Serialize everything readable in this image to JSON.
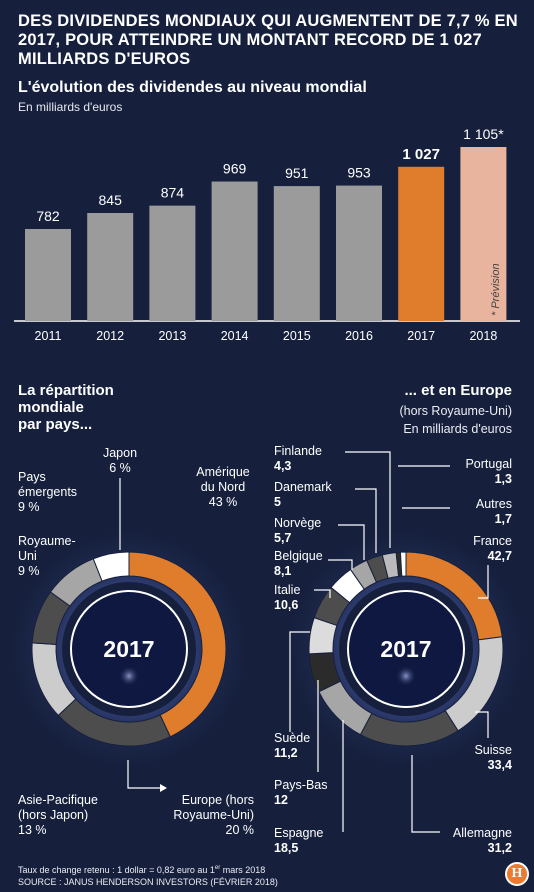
{
  "headline": "DES DIVIDENDES MONDIAUX QUI AUGMENTENT DE 7,7 % EN 2017, POUR ATTEINDRE UN MONTANT RECORD DE 1 027 MILLIARDS D'EUROS",
  "colors": {
    "background": "#16203d",
    "grey": "#9b9b9b",
    "orange": "#e07d2d",
    "forecast": "#e9b49e",
    "dark_grey": "#4d4d4d",
    "light_grey": "#cccccc",
    "white": "#ffffff"
  },
  "chart_data": [
    {
      "type": "bar",
      "title": "L'évolution des dividendes au niveau mondial",
      "subtitle": "En milliards d'euros",
      "categories": [
        "2011",
        "2012",
        "2013",
        "2014",
        "2015",
        "2016",
        "2017",
        "2018"
      ],
      "values": [
        782,
        845,
        874,
        969,
        951,
        953,
        1027,
        1105
      ],
      "value_labels": [
        "782",
        "845",
        "874",
        "969",
        "951",
        "953",
        "1 027",
        "1 105*"
      ],
      "bar_colors": [
        "#9b9b9b",
        "#9b9b9b",
        "#9b9b9b",
        "#9b9b9b",
        "#9b9b9b",
        "#9b9b9b",
        "#e07d2d",
        "#e9b49e"
      ],
      "annotation": "* Prévision",
      "ylim": [
        400,
        1120
      ],
      "xlabel": "",
      "ylabel": ""
    },
    {
      "type": "pie",
      "title": "La répartition mondiale par pays...",
      "center_label": "2017",
      "slices": [
        {
          "name": "Amérique du Nord",
          "value": 43,
          "label": "43 %",
          "color": "#e07d2d"
        },
        {
          "name": "Europe (hors Royaume-Uni)",
          "value": 20,
          "label": "20 %",
          "color": "#4d4d4d"
        },
        {
          "name": "Asie-Pacifique (hors Japon)",
          "value": 13,
          "label": "13 %",
          "color": "#cccccc"
        },
        {
          "name": "Royaume-Uni",
          "value": 9,
          "label": "9 %",
          "color": "#4d4d4d"
        },
        {
          "name": "Pays émergents",
          "value": 9,
          "label": "9 %",
          "color": "#a6a6a6"
        },
        {
          "name": "Japon",
          "value": 6,
          "label": "6 %",
          "color": "#ffffff"
        }
      ]
    },
    {
      "type": "pie",
      "title": "... et en Europe",
      "subtitle": "(hors Royaume-Uni)",
      "unit": "En milliards d'euros",
      "center_label": "2017",
      "slices": [
        {
          "name": "France",
          "value": 42.7,
          "label": "42,7",
          "color": "#e07d2d"
        },
        {
          "name": "Suisse",
          "value": 33.4,
          "label": "33,4",
          "color": "#cccccc"
        },
        {
          "name": "Allemagne",
          "value": 31.2,
          "label": "31,2",
          "color": "#4d4d4d"
        },
        {
          "name": "Espagne",
          "value": 18.5,
          "label": "18,5",
          "color": "#a6a6a6"
        },
        {
          "name": "Pays-Bas",
          "value": 12,
          "label": "12",
          "color": "#2b2b2b"
        },
        {
          "name": "Suède",
          "value": 11.2,
          "label": "11,2",
          "color": "#dcdcdc"
        },
        {
          "name": "Italie",
          "value": 10.6,
          "label": "10,6",
          "color": "#4d4d4d"
        },
        {
          "name": "Belgique",
          "value": 8.1,
          "label": "8,1",
          "color": "#ffffff"
        },
        {
          "name": "Norvège",
          "value": 5.7,
          "label": "5,7",
          "color": "#a6a6a6"
        },
        {
          "name": "Danemark",
          "value": 5,
          "label": "5",
          "color": "#4d4d4d"
        },
        {
          "name": "Finlande",
          "value": 4.3,
          "label": "4,3",
          "color": "#bbbbbb"
        },
        {
          "name": "Portugal",
          "value": 1.3,
          "label": "1,3",
          "color": "#2b2b2b"
        },
        {
          "name": "Autres",
          "value": 1.7,
          "label": "1,7",
          "color": "#ffffff"
        }
      ]
    }
  ],
  "pie_world": {
    "title_lines": [
      "La répartition",
      "mondiale",
      "par pays..."
    ],
    "labels": {
      "japon": {
        "name": "Japon",
        "value": "6 %"
      },
      "emergents": {
        "name1": "Pays",
        "name2": "émergents",
        "value": "9 %"
      },
      "ru": {
        "name1": "Royaume-",
        "name2": "Uni",
        "value": "9 %"
      },
      "amerique": {
        "name1": "Amérique",
        "name2": "du Nord",
        "value": "43 %"
      },
      "asie": {
        "name1": "Asie-Pacifique",
        "name2": "(hors Japon)",
        "value": "13 %"
      },
      "europe": {
        "name1": "Europe (hors",
        "name2": "Royaume-Uni)",
        "value": "20 %"
      }
    }
  },
  "pie_europe": {
    "title": "... et en Europe",
    "subtitle": "(hors Royaume-Uni)",
    "unit": "En milliards d'euros"
  },
  "footer": {
    "exchange_prefix": "Taux de change retenu : 1 dollar = 0,82 euro au 1",
    "exchange_sup": "er",
    "exchange_suffix": " mars 2018",
    "source": "SOURCE : JANUS HENDERSON INVESTORS  (FÉVRIER 2018)"
  },
  "logo": "H"
}
